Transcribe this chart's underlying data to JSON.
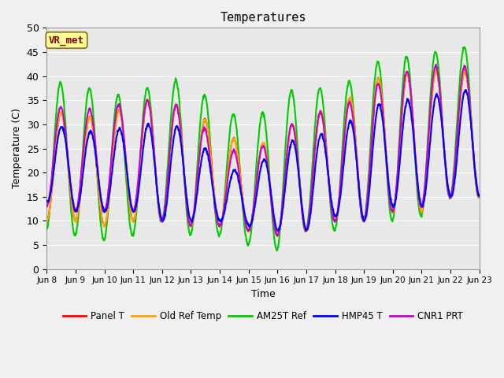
{
  "title": "Temperatures",
  "xlabel": "Time",
  "ylabel": "Temperature (C)",
  "ylim": [
    0,
    50
  ],
  "annotation_text": "VR_met",
  "annotation_bg": "#FFFF99",
  "annotation_border": "#8B6914",
  "annotation_text_color": "#8B0000",
  "plot_bg": "#E8E8E8",
  "fig_bg": "#F0F0F0",
  "series": {
    "Panel T": {
      "color": "#FF0000",
      "lw": 1.5,
      "zorder": 4
    },
    "Old Ref Temp": {
      "color": "#FFA500",
      "lw": 1.5,
      "zorder": 5
    },
    "AM25T Ref": {
      "color": "#00CC00",
      "lw": 1.5,
      "zorder": 3
    },
    "HMP45 T": {
      "color": "#0000FF",
      "lw": 1.5,
      "zorder": 7
    },
    "CNR1 PRT": {
      "color": "#CC00CC",
      "lw": 1.5,
      "zorder": 6
    }
  },
  "xtick_labels": [
    "Jun 8",
    "Jun 9",
    "Jun 10",
    "Jun 11",
    "Jun 12",
    "Jun 13",
    "Jun 14",
    "Jun 15",
    "Jun 16",
    "Jun 17",
    "Jun 18",
    "Jun 19",
    "Jun 20",
    "Jun 21",
    "Jun 22",
    "Jun 23"
  ],
  "ytick_labels": [
    0,
    5,
    10,
    15,
    20,
    25,
    30,
    35,
    40,
    45,
    50
  ],
  "day_peaks_am25t": [
    39,
    38,
    37,
    35,
    40,
    38,
    34,
    30,
    35,
    39,
    36,
    42,
    44,
    44,
    46
  ],
  "day_peaks_panel": [
    33,
    32,
    31,
    35,
    35,
    33,
    29,
    25,
    27,
    33,
    32,
    39,
    40,
    41,
    41
  ],
  "day_peaks_hmp45": [
    30,
    29,
    28,
    30,
    30,
    29,
    21,
    20,
    25,
    28,
    28,
    33,
    35,
    35,
    37
  ],
  "day_peaks_cnr1": [
    34,
    33,
    33,
    35,
    35,
    33,
    25,
    24,
    27,
    33,
    32,
    37,
    40,
    42,
    42
  ],
  "day_mins_am25t": [
    8,
    7,
    6,
    7,
    10,
    7,
    7,
    5,
    4,
    8,
    8,
    10,
    10,
    11,
    15
  ],
  "day_mins_panel": [
    10,
    10,
    9,
    10,
    10,
    9,
    9,
    8,
    7,
    8,
    10,
    10,
    12,
    12,
    15
  ],
  "day_mins_hmp45": [
    14,
    12,
    12,
    12,
    10,
    10,
    10,
    9,
    8,
    8,
    11,
    10,
    13,
    13,
    15
  ],
  "day_mins_cnr1": [
    13,
    12,
    12,
    12,
    10,
    9,
    9,
    8,
    7,
    8,
    10,
    10,
    12,
    13,
    15
  ]
}
